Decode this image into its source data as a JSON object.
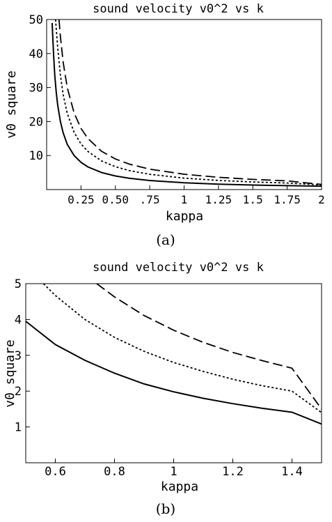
{
  "chart_data": [
    {
      "type": "line",
      "panel_label": "(a)",
      "title": "sound velocity v0^2 vs k",
      "xlabel": "kappa",
      "ylabel": "v0 square",
      "xlim": [
        0.0,
        2.0
      ],
      "ylim": [
        0,
        50
      ],
      "xticks": [
        0.25,
        0.5,
        0.75,
        1,
        1.25,
        1.5,
        1.75,
        2
      ],
      "xtick_labels": [
        "0.25",
        "0.50",
        ".75",
        "1",
        "1.25",
        "1.5",
        "1.75",
        "2"
      ],
      "yticks": [
        10,
        20,
        30,
        40,
        50
      ],
      "ytick_labels": [
        "10",
        "20",
        "30",
        "40",
        "50"
      ],
      "grid": false,
      "series": [
        {
          "style": "solid",
          "x": [
            0.04,
            0.05,
            0.06,
            0.07,
            0.08,
            0.1,
            0.12,
            0.15,
            0.2,
            0.25,
            0.3,
            0.4,
            0.5,
            0.6,
            0.75,
            1.0,
            1.25,
            1.5,
            1.75,
            2.0
          ],
          "values": [
            49.0,
            40.0,
            33.3,
            28.6,
            25.0,
            20.0,
            16.7,
            13.3,
            10.0,
            8.0,
            6.67,
            5.0,
            4.0,
            3.33,
            2.67,
            2.0,
            1.6,
            1.33,
            1.14,
            1.0
          ]
        },
        {
          "style": "dotted",
          "x": [
            0.065,
            0.08,
            0.1,
            0.12,
            0.15,
            0.2,
            0.25,
            0.3,
            0.4,
            0.5,
            0.6,
            0.75,
            1.0,
            1.25,
            1.5,
            1.75,
            2.0
          ],
          "values": [
            50.0,
            42.0,
            33.6,
            28.0,
            22.4,
            16.8,
            13.4,
            11.2,
            8.4,
            6.72,
            5.6,
            4.48,
            3.36,
            2.69,
            2.24,
            1.92,
            1.4
          ]
        },
        {
          "style": "dashed",
          "x": [
            0.09,
            0.1,
            0.12,
            0.15,
            0.2,
            0.25,
            0.3,
            0.4,
            0.5,
            0.6,
            0.75,
            1.0,
            1.25,
            1.5,
            1.75,
            2.0
          ],
          "values": [
            50.0,
            45.0,
            37.5,
            30.0,
            22.5,
            18.0,
            15.0,
            11.25,
            9.0,
            7.5,
            6.0,
            4.5,
            3.6,
            3.0,
            2.57,
            1.5
          ]
        }
      ]
    },
    {
      "type": "line",
      "panel_label": "(b)",
      "title": "sound velocity v0^2 vs k",
      "xlabel": "kappa",
      "ylabel": "v0 square",
      "xlim": [
        0.5,
        1.5
      ],
      "ylim": [
        0,
        5
      ],
      "xticks": [
        0.6,
        0.8,
        1.0,
        1.2,
        1.4
      ],
      "xtick_labels": [
        "0.6",
        "0.8",
        "1",
        "1.2",
        "1.4"
      ],
      "yticks": [
        1,
        2,
        3,
        4,
        5
      ],
      "ytick_labels": [
        "1",
        "2",
        "3",
        "4",
        "5"
      ],
      "grid": false,
      "series": [
        {
          "style": "solid",
          "x": [
            0.5,
            0.6,
            0.7,
            0.8,
            0.9,
            1.0,
            1.1,
            1.2,
            1.3,
            1.4,
            1.5
          ],
          "values": [
            3.95,
            3.3,
            2.86,
            2.5,
            2.2,
            1.98,
            1.8,
            1.65,
            1.52,
            1.41,
            1.08
          ]
        },
        {
          "style": "dotted",
          "x": [
            0.56,
            0.6,
            0.7,
            0.8,
            0.9,
            1.0,
            1.1,
            1.2,
            1.3,
            1.4,
            1.5
          ],
          "values": [
            5.0,
            4.67,
            4.0,
            3.5,
            3.11,
            2.8,
            2.55,
            2.33,
            2.15,
            2.0,
            1.4
          ]
        },
        {
          "style": "dashed",
          "x": [
            0.74,
            0.8,
            0.9,
            1.0,
            1.1,
            1.2,
            1.3,
            1.4,
            1.5
          ],
          "values": [
            5.0,
            4.63,
            4.11,
            3.7,
            3.36,
            3.08,
            2.85,
            2.64,
            1.5
          ]
        }
      ]
    }
  ]
}
